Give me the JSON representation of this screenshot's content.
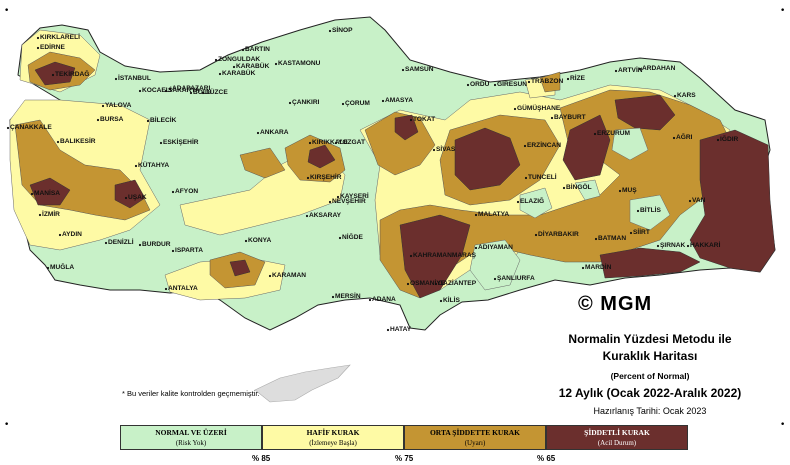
{
  "title_lines": [
    "Normalin Yüzdesi Metodu ile",
    "Kuraklık Haritası",
    "(Percent of Normal)",
    "12 Aylık (Ocak 2022-Aralık 2022)",
    "Hazırlanış Tarihi: Ocak 2023"
  ],
  "logo": "© MGM",
  "note": "* Bu veriler kalite kontrolden geçmemiştir.",
  "legend": [
    {
      "label": "NORMAL VE ÜZERİ",
      "sub": "(Risk Yok)",
      "color": "#c8f1c8"
    },
    {
      "label": "HAFİF KURAK",
      "sub": "(İzlemeye Başla)",
      "color": "#fefaa5"
    },
    {
      "label": "ORTA ŞİDDETTE KURAK",
      "sub": "(Uyarı)",
      "color": "#c49533"
    },
    {
      "label": "ŞİDDETLİ KURAK",
      "sub": "(Acil Durum)",
      "color": "#6b2f2d"
    }
  ],
  "thresholds": [
    "% 85",
    "% 75",
    "% 65"
  ],
  "corner_marks": [
    "•",
    "•",
    "•",
    "•"
  ],
  "cities": [
    "KIRKLARELİ",
    "EDİRNE",
    "TEKİRDAĞ",
    "İSTANBUL",
    "KOCAELİ",
    "SAKARYA",
    "DÜZCE",
    "YALOVA",
    "BURSA",
    "BİLECİK",
    "ÇANAKKALE",
    "BALIKESİR",
    "ESKİŞEHİR",
    "KÜTAHYA",
    "AFYON",
    "UŞAK",
    "MANİSA",
    "İZMİR",
    "AYDIN",
    "DENİZLİ",
    "MUĞLA",
    "BURDUR",
    "ISPARTA",
    "ANTALYA",
    "KONYA",
    "KARAMAN",
    "MERSİN",
    "ADANA",
    "HATAY",
    "OSMANİYE",
    "GAZİANTEP",
    "KİLİS",
    "ŞANLIURFA",
    "ADIYAMAN",
    "MALATYA",
    "KAHRAMANMARAŞ",
    "NİĞDE",
    "AKSARAY",
    "NEVŞEHİR",
    "KAYSERİ",
    "KIRŞEHİR",
    "KIRIKKALE",
    "ANKARA",
    "ÇANKIRI",
    "KARABÜK",
    "ZONGULDAK",
    "BARTIN",
    "KASTAMONU",
    "SİNOP",
    "SAMSUN",
    "ÇORUM",
    "AMASYA",
    "TOKAT",
    "YOZGAT",
    "SİVAS",
    "ORDU",
    "GİRESUN",
    "TRABZON",
    "RİZE",
    "ARTVİN",
    "ARDAHAN",
    "KARS",
    "IĞDIR",
    "AĞRI",
    "ERZURUM",
    "BAYBURT",
    "GÜMÜŞHANE",
    "ERZİNCAN",
    "TUNCELİ",
    "BİNGÖL",
    "ELAZIĞ",
    "DİYARBAKIR",
    "BATMAN",
    "SİİRT",
    "ŞIRNAK",
    "HAKKARİ",
    "VAN",
    "BİTLİS",
    "MUŞ",
    "MARDİN",
    "BOLU",
    "ADAPAZARI",
    "KARABÜK"
  ]
}
